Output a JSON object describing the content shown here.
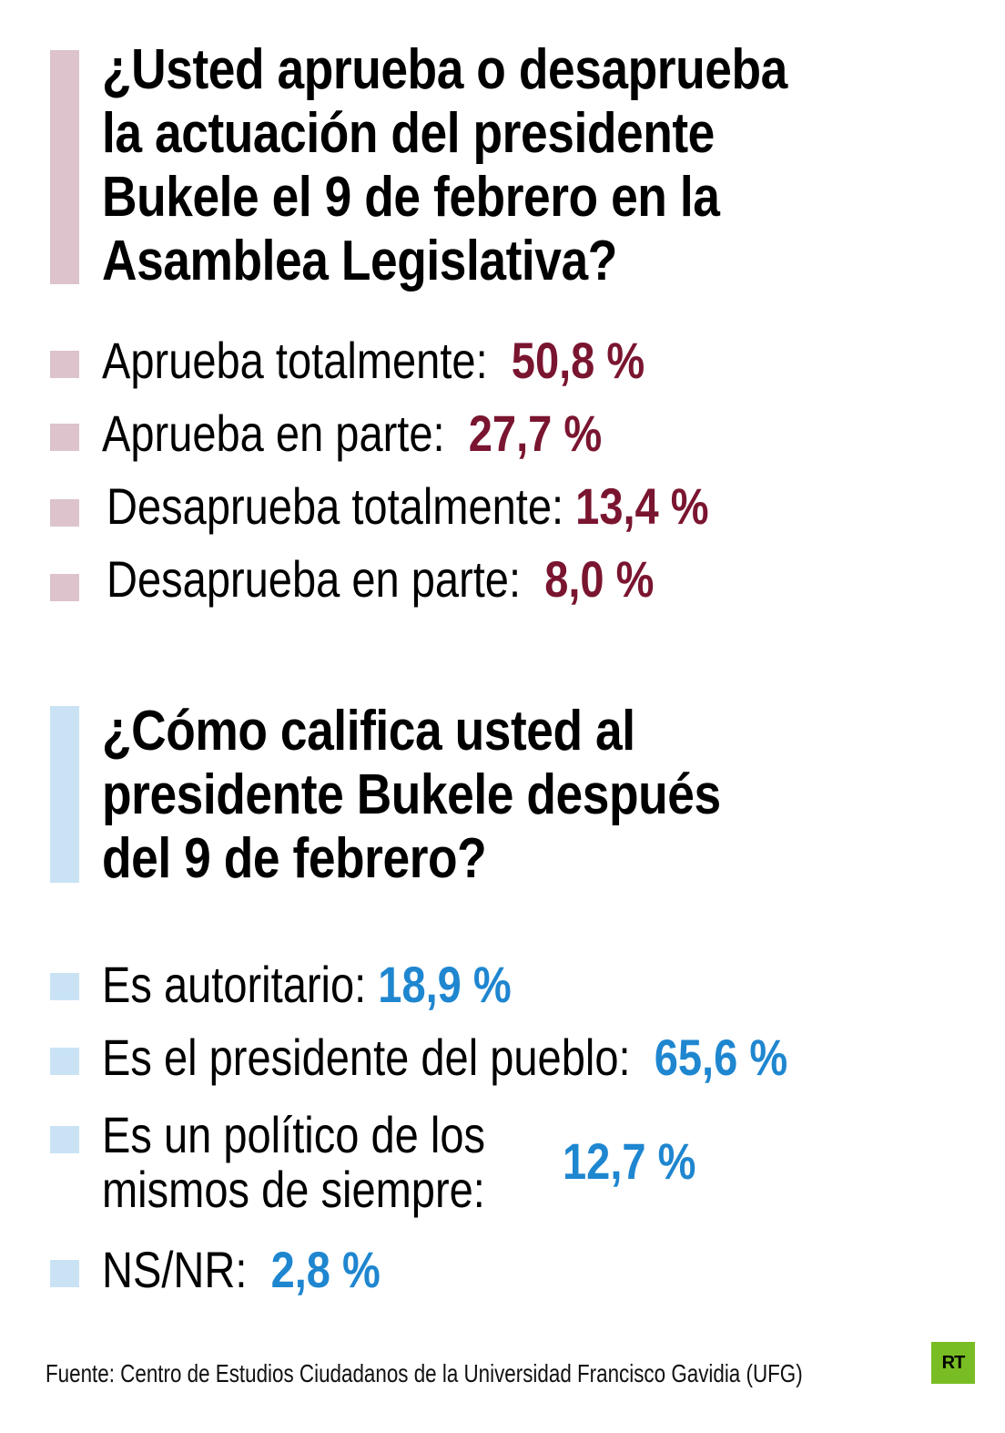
{
  "colors": {
    "accent1": "#7a1530",
    "accent1_light": "#dcc3cc",
    "accent2": "#1f86d0",
    "accent2_light": "#c9e3f5",
    "logo": "#79bd24"
  },
  "q1": {
    "title_lines": [
      "¿Usted aprueba o desaprueba",
      "la actuación del presidente",
      "Bukele el 9 de febrero en la",
      "Asamblea Legislativa?"
    ],
    "items": [
      {
        "label": "Aprueba totalmente:",
        "value": "50,8 %"
      },
      {
        "label": "Aprueba en parte:",
        "value": "27,7 %"
      },
      {
        "label": "Desaprueba totalmente:",
        "value": "13,4 %"
      },
      {
        "label": "Desaprueba en parte:",
        "value": "8,0 %"
      }
    ]
  },
  "q2": {
    "title_lines": [
      "¿Cómo califica usted al",
      "presidente Bukele después",
      "del 9 de febrero?"
    ],
    "items": [
      {
        "label": "Es autoritario:",
        "value": "18,9 %"
      },
      {
        "label": "Es el presidente del pueblo:",
        "value": "65,6 %"
      },
      {
        "label_line1": "Es un político de los",
        "label_line2": "mismos de siempre:",
        "value": "12,7 %"
      },
      {
        "label": "NS/NR:",
        "value": "2,8 %"
      }
    ]
  },
  "footer": {
    "source": "Fuente: Centro de Estudios Ciudadanos de la Universidad Francisco Gavidia (UFG)",
    "logo_text": "RT"
  }
}
